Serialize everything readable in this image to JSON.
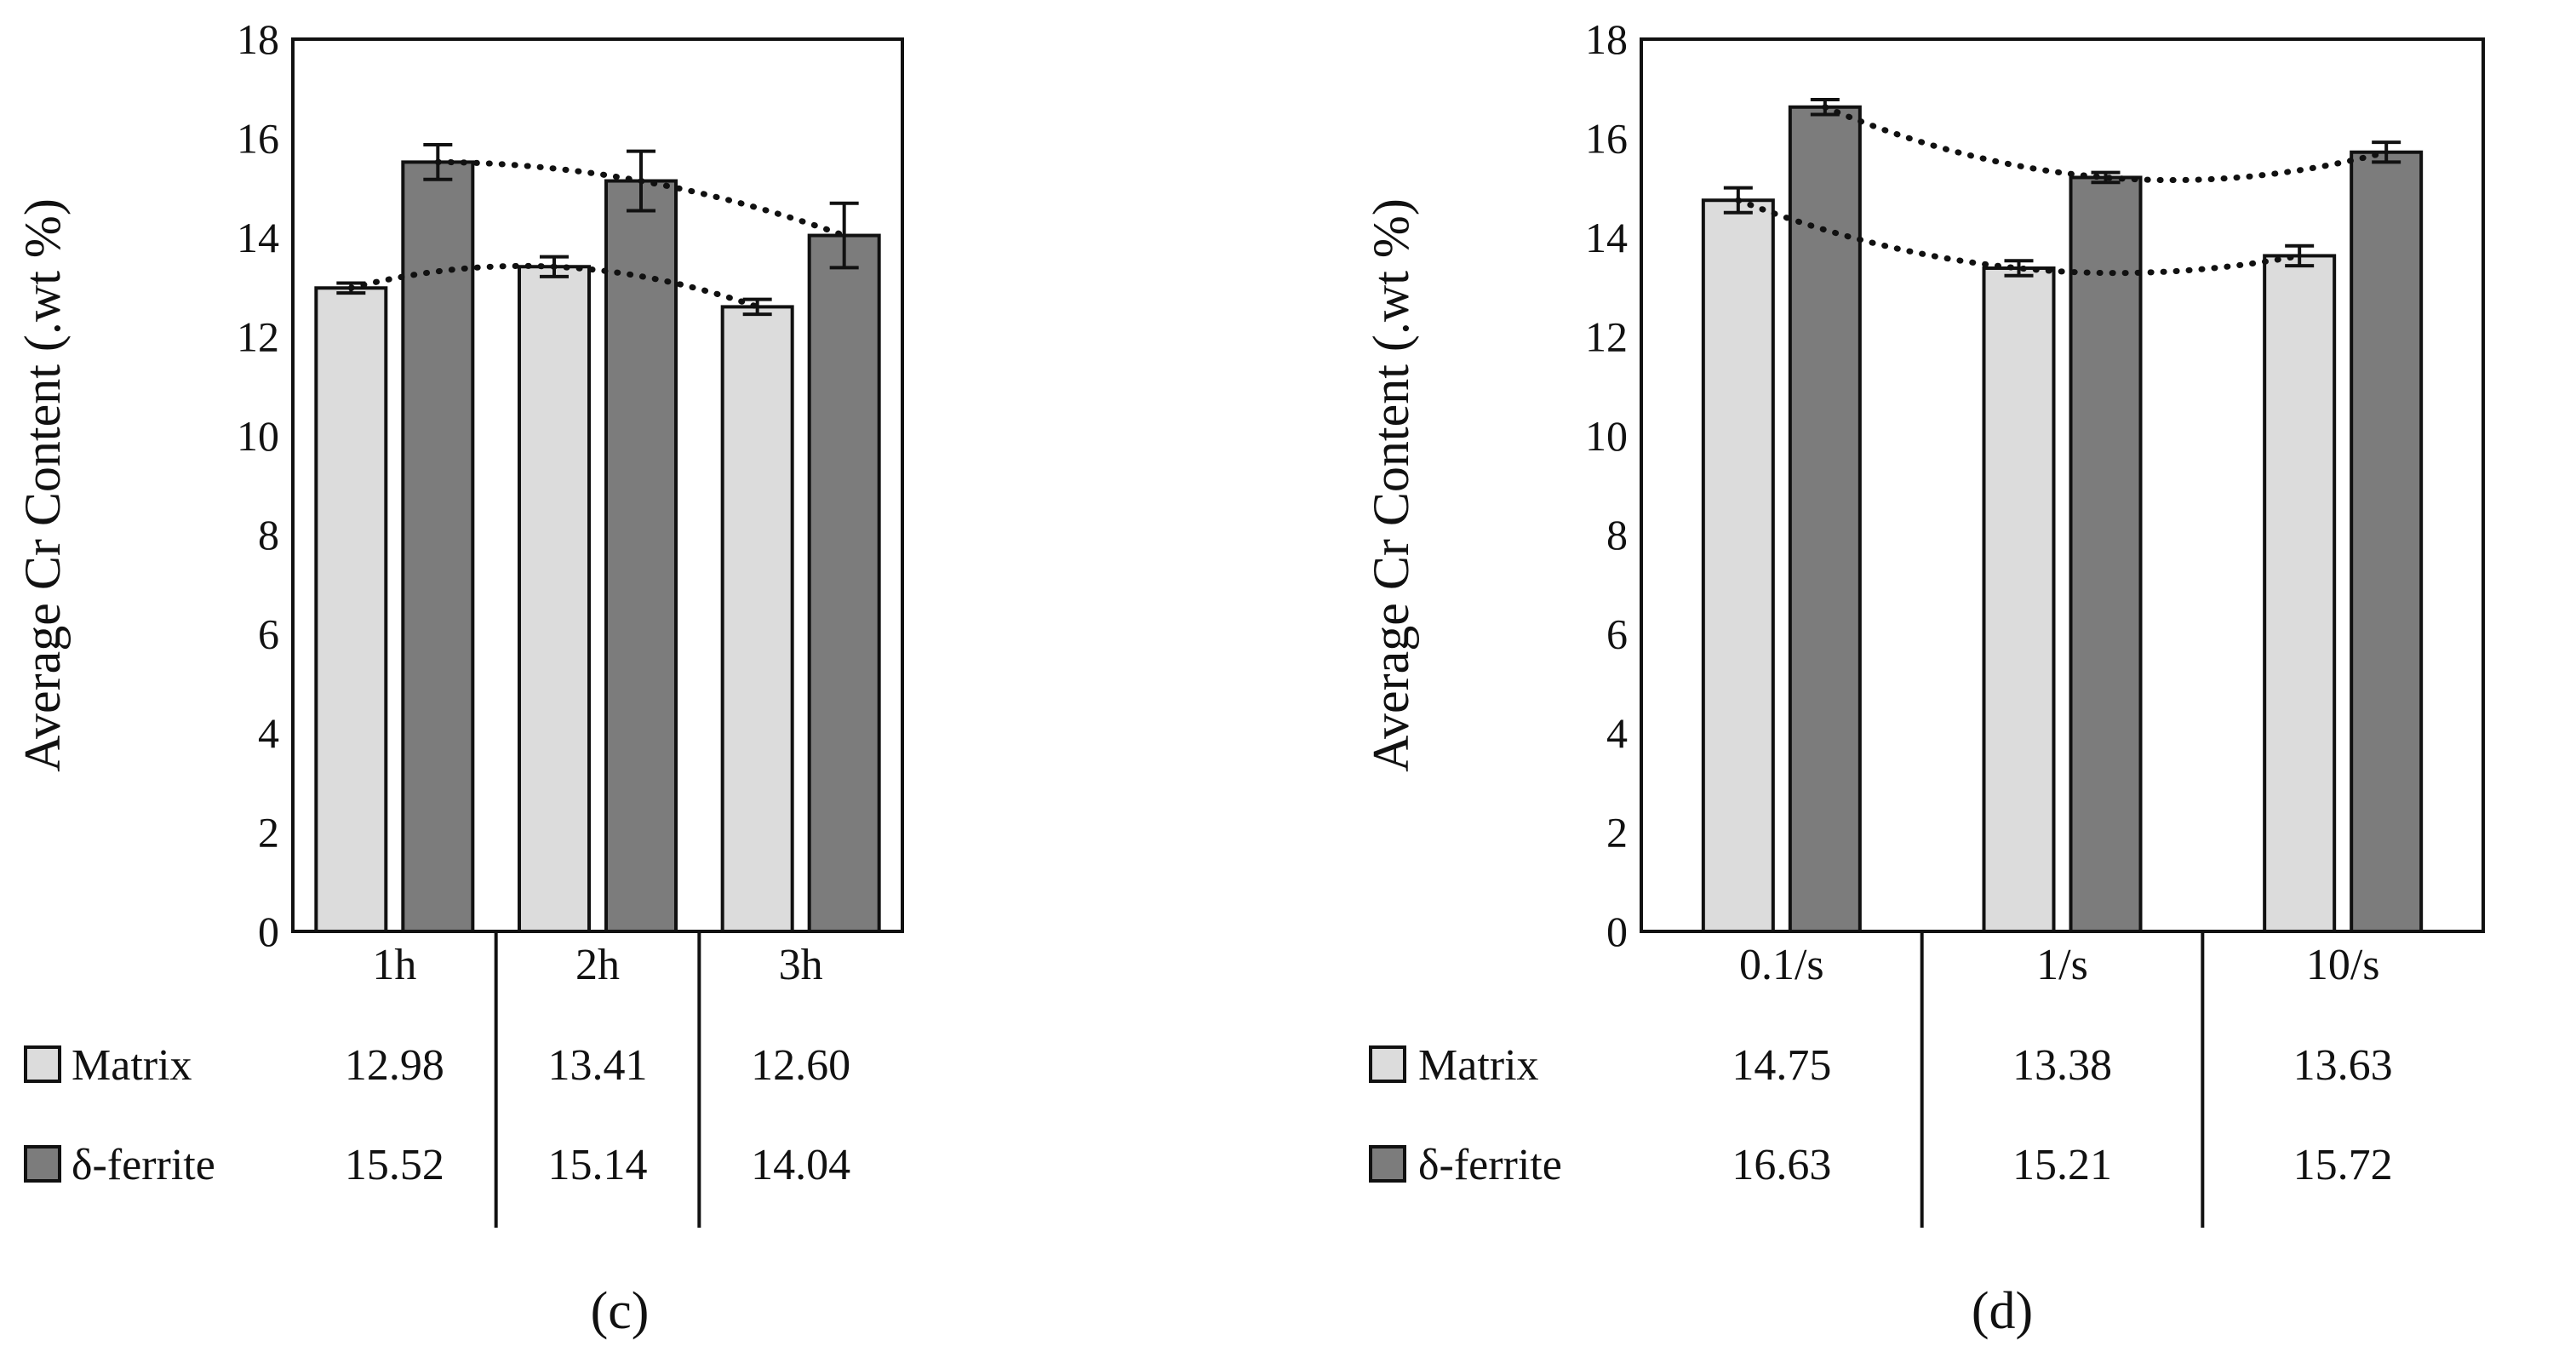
{
  "colors": {
    "matrix": "#dcdcdc",
    "ferrite": "#7c7c7c",
    "stroke": "#111111"
  },
  "panels": [
    {
      "caption": "(c)",
      "chart_data": {
        "type": "bar",
        "ylabel": "Average Cr Content (.wt %)",
        "ylim": [
          0,
          18
        ],
        "yticks": [
          "0",
          "2",
          "4",
          "6",
          "8",
          "10",
          "12",
          "14",
          "16",
          "18"
        ],
        "categories": [
          "1h",
          "2h",
          "3h"
        ],
        "series": [
          {
            "name": "Matrix",
            "key": "matrix",
            "values": [
              12.98,
              13.41,
              12.6
            ],
            "labels": [
              "12.98",
              "13.41",
              "12.60"
            ],
            "err": [
              0.1,
              0.2,
              0.15
            ]
          },
          {
            "name": "δ-ferrite",
            "key": "ferrite",
            "values": [
              15.52,
              15.14,
              14.04
            ],
            "labels": [
              "15.52",
              "15.14",
              "14.04"
            ],
            "err": [
              0.35,
              0.6,
              0.65
            ]
          }
        ],
        "trendlines": "dotted polynomial per series",
        "grid": false,
        "legend": "data table below axis"
      }
    },
    {
      "caption": "(d)",
      "chart_data": {
        "type": "bar",
        "ylabel": "Average Cr Content (.wt %)",
        "ylim": [
          0,
          18
        ],
        "yticks": [
          "0",
          "2",
          "4",
          "6",
          "8",
          "10",
          "12",
          "14",
          "16",
          "18"
        ],
        "categories": [
          "0.1/s",
          "1/s",
          "10/s"
        ],
        "series": [
          {
            "name": "Matrix",
            "key": "matrix",
            "values": [
              14.75,
              13.38,
              13.63
            ],
            "labels": [
              "14.75",
              "13.38",
              "13.63"
            ],
            "err": [
              0.25,
              0.15,
              0.2
            ]
          },
          {
            "name": "δ-ferrite",
            "key": "ferrite",
            "values": [
              16.63,
              15.21,
              15.72
            ],
            "labels": [
              "16.63",
              "15.21",
              "15.72"
            ],
            "err": [
              0.15,
              0.1,
              0.2
            ]
          }
        ],
        "trendlines": "dotted polynomial per series",
        "grid": false,
        "legend": "data table below axis"
      }
    }
  ]
}
